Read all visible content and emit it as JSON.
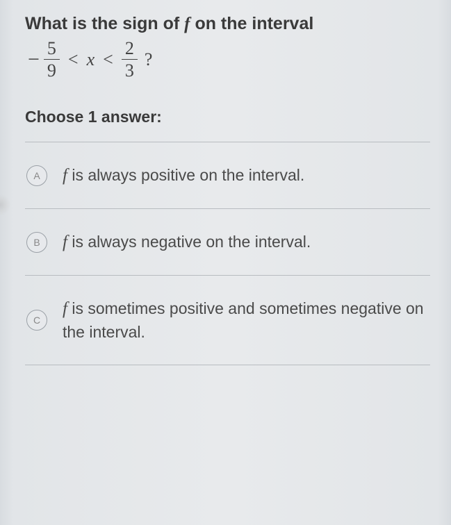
{
  "question": {
    "stem_prefix": "What is the sign of ",
    "stem_func": "f",
    "stem_suffix": " on the interval",
    "interval": {
      "neg_sign": "−",
      "left_num": "5",
      "left_den": "9",
      "lt1": "<",
      "var": "x",
      "lt2": "<",
      "right_num": "2",
      "right_den": "3",
      "qmark": "?"
    },
    "choose_label": "Choose 1 answer:"
  },
  "choices": [
    {
      "letter": "A",
      "func": "f",
      "text": " is always positive on the interval."
    },
    {
      "letter": "B",
      "func": "f",
      "text": " is always negative on the interval."
    },
    {
      "letter": "C",
      "func": "f",
      "text": " is sometimes positive and sometimes negative on the interval."
    }
  ],
  "styles": {
    "circle_border": "#9aa0a6",
    "divider": "#b8bcc0",
    "text_color": "#3a3a3a"
  }
}
